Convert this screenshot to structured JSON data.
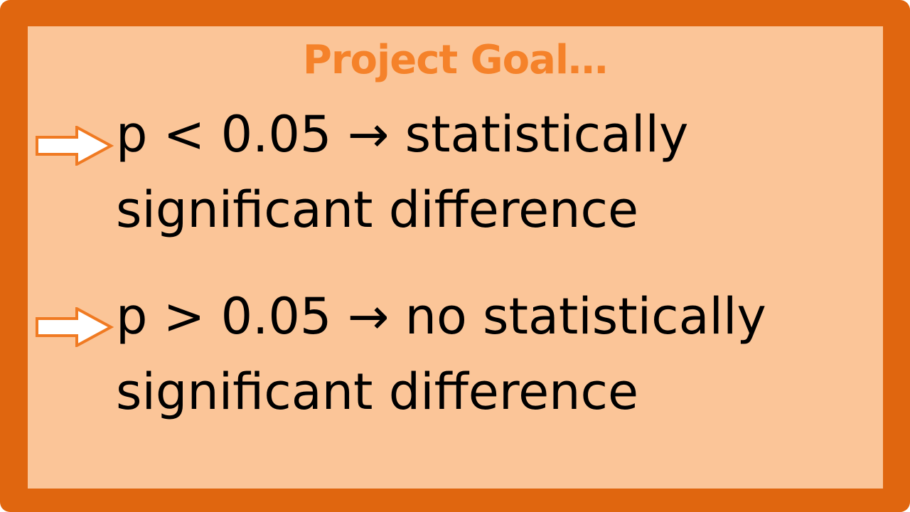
{
  "title": "Project Goal…",
  "bullets": [
    {
      "line1": "p < 0.05 → statistically",
      "line2": "significant difference",
      "icon": "right-arrow-icon"
    },
    {
      "line1": "p > 0.05 → no statistically",
      "line2": "significant difference",
      "icon": "right-arrow-icon"
    }
  ],
  "colors": {
    "frame": "#e0660f",
    "panel": "#fbc598",
    "title": "#f5822a",
    "arrow_outline": "#f07a22",
    "text": "#000000"
  }
}
